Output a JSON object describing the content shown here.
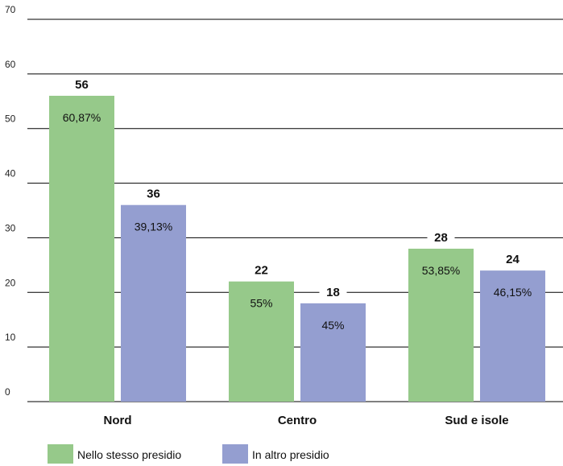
{
  "chart_data": {
    "type": "bar",
    "categories": [
      "Nord",
      "Centro",
      "Sud e isole"
    ],
    "series": [
      {
        "name": "Nello stesso presidio",
        "color": "#96c98a",
        "values": [
          56,
          22,
          28
        ],
        "labels": [
          "60,87%",
          "55%",
          "53,85%"
        ]
      },
      {
        "name": "In altro presidio",
        "color": "#949ed0",
        "values": [
          36,
          18,
          24
        ],
        "labels": [
          "39,13%",
          "45%",
          "46,15%"
        ]
      }
    ],
    "ylim": [
      0,
      70
    ],
    "yticks": [
      0,
      10,
      20,
      30,
      40,
      50,
      60,
      70
    ],
    "grid": true,
    "legend_position": "bottom-left",
    "title": "",
    "xlabel": "",
    "ylabel": ""
  }
}
